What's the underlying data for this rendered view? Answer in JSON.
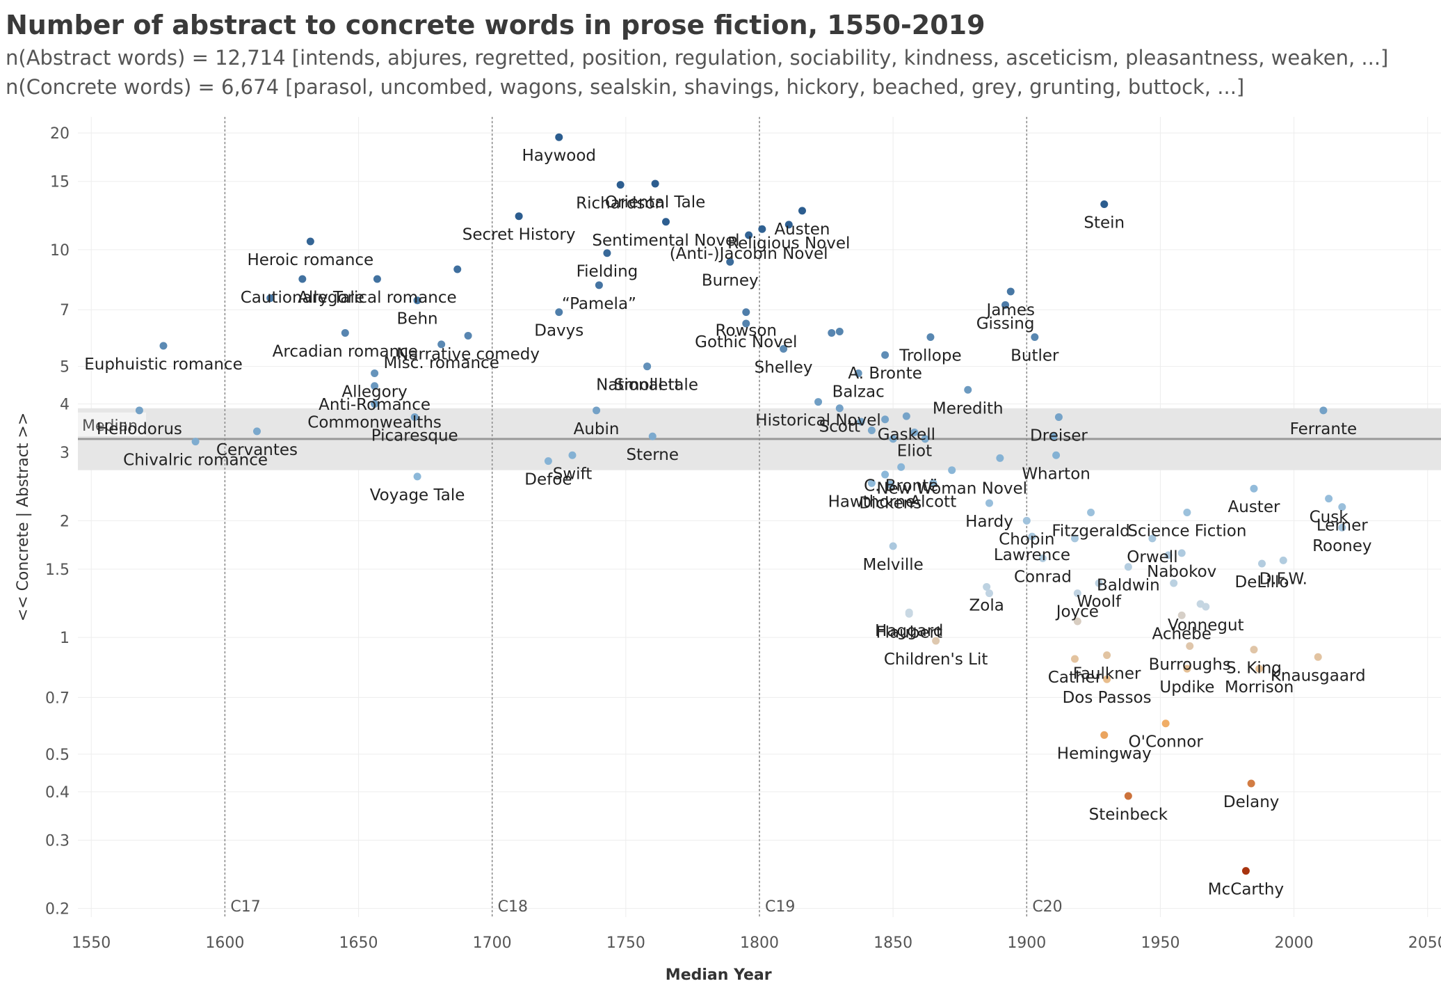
{
  "header": {
    "title": "Number of abstract to concrete words in prose fiction, 1550-2019",
    "subtitle_abstract": "n(Abstract words) =  12,714 [intends, abjures, regretted, position, regulation, sociability, kindness, asceticism, pleasantness, weaken, ...]",
    "subtitle_concrete": "n(Concrete words) = 6,674 [parasol, uncombed, wagons, sealskin, shavings, hickory, beached, grey, grunting, buttock, ...]"
  },
  "chart_data": {
    "type": "scatter",
    "xlabel": "Median Year",
    "ylabel": "<< Concrete | Abstract >>",
    "xlim": [
      1545,
      2055
    ],
    "ylim": [
      0.19,
      22
    ],
    "y_scale": "log",
    "x_ticks": [
      1550,
      1600,
      1650,
      1700,
      1750,
      1800,
      1850,
      1900,
      1950,
      2000,
      2050
    ],
    "y_ticks": [
      0.2,
      0.3,
      0.4,
      0.5,
      0.7,
      1,
      1.5,
      2,
      3,
      4,
      5,
      7,
      10,
      15,
      20
    ],
    "median": {
      "label": "Median",
      "value": 3.25,
      "band": [
        2.7,
        3.9
      ]
    },
    "century_lines": [
      {
        "label": "C17",
        "x": 1600
      },
      {
        "label": "C18",
        "x": 1700
      },
      {
        "label": "C19",
        "x": 1800
      },
      {
        "label": "C20",
        "x": 1900
      }
    ],
    "colors": {
      "abstract": "#2c5d8f",
      "neutral": "#c9cdcf",
      "concrete": "#a8340f",
      "grid": "#ededed",
      "band": "#e6e6e6",
      "median": "#999999"
    },
    "points": [
      {
        "label": "Haywood",
        "x": 1725,
        "y": 19.5
      },
      {
        "label": "Richardson",
        "x": 1748,
        "y": 14.7
      },
      {
        "label": "Oriental Tale",
        "x": 1761,
        "y": 14.8
      },
      {
        "label": "Secret History",
        "x": 1710,
        "y": 12.2
      },
      {
        "label": "Sentimental Novel",
        "x": 1765,
        "y": 11.8
      },
      {
        "label": "Austen",
        "x": 1816,
        "y": 12.6
      },
      {
        "label": "Religious Novel",
        "x": 1811,
        "y": 11.6
      },
      {
        "label": "",
        "x": 1801,
        "y": 11.3
      },
      {
        "label": "(Anti-)Jacobin Novel",
        "x": 1796,
        "y": 10.9
      },
      {
        "label": "Stein",
        "x": 1929,
        "y": 13.1
      },
      {
        "label": "Heroic romance",
        "x": 1632,
        "y": 10.5
      },
      {
        "label": "Fielding",
        "x": 1743,
        "y": 9.8
      },
      {
        "label": "Burney",
        "x": 1789,
        "y": 9.3
      },
      {
        "label": "",
        "x": 1687,
        "y": 8.9
      },
      {
        "label": "Allegorical romance",
        "x": 1657,
        "y": 8.4
      },
      {
        "label": "Cautionary Tale",
        "x": 1629,
        "y": 8.4
      },
      {
        "label": "“Pamela”",
        "x": 1740,
        "y": 8.1
      },
      {
        "label": "Behn",
        "x": 1672,
        "y": 7.4
      },
      {
        "label": "",
        "x": 1617,
        "y": 7.5
      },
      {
        "label": "James",
        "x": 1894,
        "y": 7.8
      },
      {
        "label": "Gissing",
        "x": 1892,
        "y": 7.2
      },
      {
        "label": "Rowson",
        "x": 1795,
        "y": 6.9
      },
      {
        "label": "Davys",
        "x": 1725,
        "y": 6.9
      },
      {
        "label": "Gothic Novel",
        "x": 1795,
        "y": 6.45
      },
      {
        "label": "Arcadian romance",
        "x": 1645,
        "y": 6.1
      },
      {
        "label": "Narrative comedy",
        "x": 1691,
        "y": 6.0
      },
      {
        "label": "",
        "x": 1827,
        "y": 6.1
      },
      {
        "label": "",
        "x": 1830,
        "y": 6.15
      },
      {
        "label": "Trollope",
        "x": 1864,
        "y": 5.95
      },
      {
        "label": "Butler",
        "x": 1903,
        "y": 5.95
      },
      {
        "label": "Misc. romance",
        "x": 1681,
        "y": 5.7
      },
      {
        "label": "Euphuistic romance",
        "x": 1577,
        "y": 5.65
      },
      {
        "label": "Shelley",
        "x": 1809,
        "y": 5.55
      },
      {
        "label": "A. Bronte",
        "x": 1847,
        "y": 5.35
      },
      {
        "label": "National tale",
        "x": 1758,
        "y": 5.0
      },
      {
        "label": "Balzac",
        "x": 1837,
        "y": 4.8
      },
      {
        "label": "Allegory",
        "x": 1656,
        "y": 4.8
      },
      {
        "label": "Anti-Romance",
        "x": 1656,
        "y": 4.45
      },
      {
        "label": "Smollett",
        "x": 1758,
        "y": 5.0
      },
      {
        "label": "Scott",
        "x": 1830,
        "y": 3.9
      },
      {
        "label": "Meredith",
        "x": 1878,
        "y": 4.35
      },
      {
        "label": "Historical Novel",
        "x": 1822,
        "y": 4.05
      },
      {
        "label": "Commonwealths",
        "x": 1656,
        "y": 4.0
      },
      {
        "label": "Heliodorus",
        "x": 1568,
        "y": 3.85
      },
      {
        "label": "Aubin",
        "x": 1739,
        "y": 3.85
      },
      {
        "label": "Ferrante",
        "x": 2011,
        "y": 3.85
      },
      {
        "label": "Picaresque",
        "x": 1671,
        "y": 3.7
      },
      {
        "label": "Dreiser",
        "x": 1912,
        "y": 3.7
      },
      {
        "label": "Gaskell",
        "x": 1855,
        "y": 3.72
      },
      {
        "label": "",
        "x": 1838,
        "y": 3.6
      },
      {
        "label": "",
        "x": 1847,
        "y": 3.65
      },
      {
        "label": "",
        "x": 1842,
        "y": 3.42
      },
      {
        "label": "Eliot",
        "x": 1858,
        "y": 3.38
      },
      {
        "label": "",
        "x": 1850,
        "y": 3.25
      },
      {
        "label": "",
        "x": 1862,
        "y": 3.25
      },
      {
        "label": "",
        "x": 1910,
        "y": 3.3
      },
      {
        "label": "Cervantes",
        "x": 1612,
        "y": 3.4
      },
      {
        "label": "Chivalric romance",
        "x": 1589,
        "y": 3.2
      },
      {
        "label": "Sterne",
        "x": 1760,
        "y": 3.3
      },
      {
        "label": "Swift",
        "x": 1730,
        "y": 2.95
      },
      {
        "label": "Defoe",
        "x": 1721,
        "y": 2.85
      },
      {
        "label": "Wharton",
        "x": 1911,
        "y": 2.95
      },
      {
        "label": "",
        "x": 1890,
        "y": 2.9
      },
      {
        "label": "C. Brontë",
        "x": 1853,
        "y": 2.75
      },
      {
        "label": "New Woman Novel",
        "x": 1872,
        "y": 2.7
      },
      {
        "label": "Voyage Tale",
        "x": 1672,
        "y": 2.6
      },
      {
        "label": "",
        "x": 1847,
        "y": 2.63
      },
      {
        "label": "Hawthorne",
        "x": 1842,
        "y": 2.5
      },
      {
        "label": "Dickens",
        "x": 1849,
        "y": 2.48
      },
      {
        "label": "Alcott",
        "x": 1865,
        "y": 2.5
      },
      {
        "label": "Auster",
        "x": 1985,
        "y": 2.42
      },
      {
        "label": "Cusk",
        "x": 2013,
        "y": 2.28
      },
      {
        "label": "Lerner",
        "x": 2018,
        "y": 2.17
      },
      {
        "label": "Hardy",
        "x": 1886,
        "y": 2.22
      },
      {
        "label": "Science Fiction",
        "x": 1960,
        "y": 2.1
      },
      {
        "label": "Fitzgerald",
        "x": 1924,
        "y": 2.1
      },
      {
        "label": "Chopin",
        "x": 1900,
        "y": 2.0
      },
      {
        "label": "Orwell",
        "x": 1947,
        "y": 1.8
      },
      {
        "label": "Rooney",
        "x": 2018,
        "y": 1.92
      },
      {
        "label": "Lawrence",
        "x": 1902,
        "y": 1.82
      },
      {
        "label": "",
        "x": 1918,
        "y": 1.8
      },
      {
        "label": "Melville",
        "x": 1850,
        "y": 1.72
      },
      {
        "label": "Nabokov",
        "x": 1958,
        "y": 1.65
      },
      {
        "label": "",
        "x": 1953,
        "y": 1.63
      },
      {
        "label": "Conrad",
        "x": 1906,
        "y": 1.6
      },
      {
        "label": "D.F.W.",
        "x": 1996,
        "y": 1.58
      },
      {
        "label": "DeLillo",
        "x": 1988,
        "y": 1.55
      },
      {
        "label": "Baldwin",
        "x": 1938,
        "y": 1.52
      },
      {
        "label": "Woolf",
        "x": 1927,
        "y": 1.38
      },
      {
        "label": "",
        "x": 1955,
        "y": 1.38
      },
      {
        "label": "Zola",
        "x": 1885,
        "y": 1.35
      },
      {
        "label": "",
        "x": 1886,
        "y": 1.3
      },
      {
        "label": "Joyce",
        "x": 1919,
        "y": 1.3
      },
      {
        "label": "Vonnegut",
        "x": 1967,
        "y": 1.2
      },
      {
        "label": "",
        "x": 1965,
        "y": 1.22
      },
      {
        "label": "Haggard",
        "x": 1856,
        "y": 1.16
      },
      {
        "label": "Flaubert",
        "x": 1856,
        "y": 1.15
      },
      {
        "label": "Achebe",
        "x": 1958,
        "y": 1.14
      },
      {
        "label": "",
        "x": 1919,
        "y": 1.1
      },
      {
        "label": "Burroughs",
        "x": 1961,
        "y": 0.95
      },
      {
        "label": "Children's Lit",
        "x": 1866,
        "y": 0.98
      },
      {
        "label": "Faulkner",
        "x": 1930,
        "y": 0.9
      },
      {
        "label": "S. King",
        "x": 1985,
        "y": 0.93
      },
      {
        "label": "Cather",
        "x": 1918,
        "y": 0.88
      },
      {
        "label": "Knausgaard",
        "x": 2009,
        "y": 0.89
      },
      {
        "label": "Updike",
        "x": 1960,
        "y": 0.83
      },
      {
        "label": "Morrison",
        "x": 1987,
        "y": 0.83
      },
      {
        "label": "Dos Passos",
        "x": 1930,
        "y": 0.78
      },
      {
        "label": "O'Connor",
        "x": 1952,
        "y": 0.6
      },
      {
        "label": "Hemingway",
        "x": 1929,
        "y": 0.56
      },
      {
        "label": "Delany",
        "x": 1984,
        "y": 0.42
      },
      {
        "label": "Steinbeck",
        "x": 1938,
        "y": 0.39
      },
      {
        "label": "McCarthy",
        "x": 1982,
        "y": 0.25
      }
    ]
  }
}
